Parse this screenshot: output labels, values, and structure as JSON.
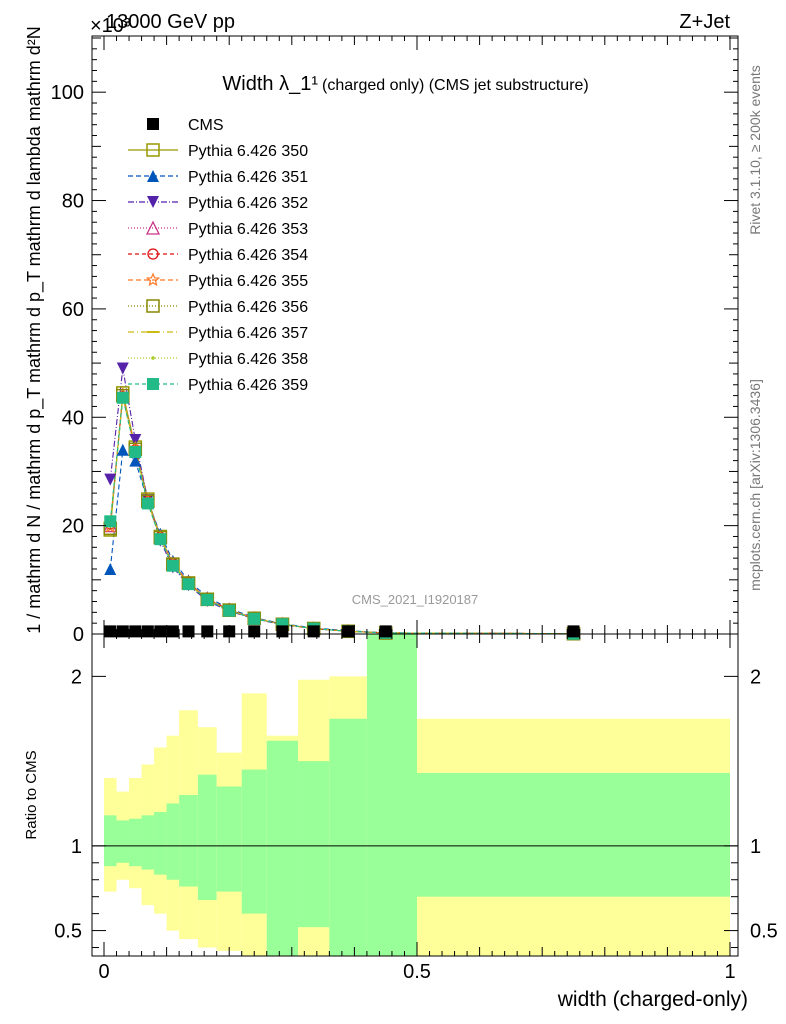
{
  "header": {
    "left": "13000 GeV pp",
    "right": "Z+Jet",
    "exponent": "×10³"
  },
  "side_labels": {
    "rivet": "Rivet 3.1.10, ≥ 200k events",
    "mcplots": "mcplots.cern.ch [arXiv:1306.3436]"
  },
  "watermark": "CMS_2021_I1920187",
  "chart_data": {
    "type": "line",
    "title": "Width λ_1¹",
    "subtitle": "(charged only) (CMS jet substructure)",
    "xlabel": "width (charged-only)",
    "ylabel_main": "1 / mathrm d N / mathrm d p_T mathrm d p_T mathrm d lambda mathrm d²N",
    "ylabel_ratio": "Ratio to CMS",
    "xlim": [
      -0.005,
      1.0
    ],
    "ylim": [
      0,
      110
    ],
    "ratio_ylim": [
      0.35,
      2.25
    ],
    "x_ticks": [
      "0",
      "0.5",
      "1"
    ],
    "y_ticks": [
      "0",
      "20",
      "40",
      "60",
      "80",
      "100"
    ],
    "ratio_ticks": [
      "0.5",
      "1",
      "2"
    ],
    "legend_position": "top-left",
    "x": [
      0.01,
      0.03,
      0.05,
      0.07,
      0.09,
      0.11,
      0.135,
      0.165,
      0.2,
      0.24,
      0.285,
      0.335,
      0.39,
      0.45,
      0.75
    ],
    "cms": [
      0.3,
      0.3,
      0.3,
      0.3,
      0.3,
      0.3,
      0.3,
      0.3,
      0.3,
      0.3,
      0.3,
      0.3,
      0.3,
      0.3,
      0.3
    ],
    "series": [
      {
        "name": "CMS"
      },
      {
        "name": "Pythia 6.426 350",
        "color": "#999900",
        "marker": "square-open",
        "dash": "",
        "values": [
          19.2,
          44.5,
          34.5,
          24.9,
          18.0,
          12.8,
          9.4,
          6.4,
          4.4,
          2.9,
          1.8,
          1.0,
          0.5,
          0.2,
          0.05
        ]
      },
      {
        "name": "Pythia 6.426 351",
        "color": "#0055bb",
        "marker": "triangle-up",
        "dash": "5,3",
        "values": [
          12.0,
          34.0,
          32.0,
          24.5,
          18.5,
          13.5,
          9.9,
          6.8,
          4.7,
          3.0,
          1.9,
          1.1,
          0.6,
          0.2,
          0.05
        ]
      },
      {
        "name": "Pythia 6.426 352",
        "color": "#5522aa",
        "marker": "triangle-down",
        "dash": "6,2,1,2",
        "values": [
          28.5,
          49.0,
          35.8,
          24.7,
          17.2,
          12.3,
          9.0,
          6.1,
          4.2,
          2.8,
          1.7,
          1.0,
          0.5,
          0.2,
          0.05
        ]
      },
      {
        "name": "Pythia 6.426 353",
        "color": "#cc3388",
        "marker": "triangle-open",
        "dash": "1,2",
        "values": [
          20.0,
          44.0,
          34.2,
          24.6,
          17.9,
          13.0,
          9.5,
          6.5,
          4.5,
          2.9,
          1.8,
          1.0,
          0.5,
          0.2,
          0.05
        ]
      },
      {
        "name": "Pythia 6.426 354",
        "color": "#dd1111",
        "marker": "circle-open",
        "dash": "4,3",
        "values": [
          20.3,
          43.8,
          34.0,
          24.5,
          17.8,
          13.0,
          9.5,
          6.5,
          4.5,
          2.9,
          1.8,
          1.0,
          0.5,
          0.2,
          0.05
        ]
      },
      {
        "name": "Pythia 6.426 355",
        "color": "#ff7722",
        "marker": "star-open",
        "dash": "5,3",
        "values": [
          19.8,
          44.2,
          34.3,
          24.6,
          17.9,
          12.9,
          9.4,
          6.4,
          4.4,
          2.9,
          1.8,
          1.0,
          0.5,
          0.2,
          0.05
        ]
      },
      {
        "name": "Pythia 6.426 356",
        "color": "#888800",
        "marker": "square-open",
        "dash": "1,2",
        "values": [
          19.5,
          44.0,
          34.1,
          24.5,
          17.8,
          12.9,
          9.4,
          6.4,
          4.4,
          2.9,
          1.8,
          1.0,
          0.5,
          0.2,
          0.05
        ]
      },
      {
        "name": "Pythia 6.426 357",
        "color": "#ccbb11",
        "marker": "dash",
        "dash": "6,3,1,3",
        "values": [
          19.9,
          43.9,
          34.0,
          24.4,
          17.7,
          12.8,
          9.3,
          6.3,
          4.4,
          2.9,
          1.8,
          1.0,
          0.5,
          0.2,
          0.05
        ]
      },
      {
        "name": "Pythia 6.426 358",
        "color": "#aacc22",
        "marker": "dot",
        "dash": "1,2",
        "values": [
          20.1,
          43.7,
          33.9,
          24.3,
          17.6,
          12.8,
          9.3,
          6.3,
          4.4,
          2.9,
          1.8,
          1.0,
          0.5,
          0.2,
          0.05
        ]
      },
      {
        "name": "Pythia 6.426 359",
        "color": "#22bb88",
        "marker": "square",
        "dash": "4,3",
        "values": [
          20.8,
          43.6,
          33.6,
          24.1,
          17.5,
          12.6,
          9.2,
          6.3,
          4.3,
          2.8,
          1.8,
          1.0,
          0.5,
          0.2,
          0.05
        ]
      }
    ],
    "ratio_bands": {
      "edges": [
        0.0,
        0.02,
        0.04,
        0.06,
        0.08,
        0.1,
        0.12,
        0.15,
        0.18,
        0.22,
        0.26,
        0.31,
        0.36,
        0.42,
        0.5,
        1.0
      ],
      "green_lo": [
        0.88,
        0.9,
        0.88,
        0.86,
        0.83,
        0.8,
        0.76,
        0.68,
        0.73,
        0.6,
        0.35,
        0.52,
        0.35,
        0.35,
        0.7
      ],
      "green_hi": [
        1.18,
        1.15,
        1.16,
        1.18,
        1.2,
        1.25,
        1.3,
        1.42,
        1.35,
        1.45,
        1.62,
        1.5,
        1.75,
        2.25,
        1.43
      ],
      "yellow_lo": [
        0.73,
        0.8,
        0.75,
        0.65,
        0.6,
        0.5,
        0.45,
        0.4,
        0.38,
        0.35,
        0.35,
        0.35,
        0.35,
        0.35,
        0.35
      ],
      "yellow_hi": [
        1.4,
        1.32,
        1.4,
        1.48,
        1.58,
        1.65,
        1.8,
        1.7,
        1.55,
        1.9,
        1.65,
        1.98,
        2.0,
        2.25,
        1.75
      ]
    }
  }
}
